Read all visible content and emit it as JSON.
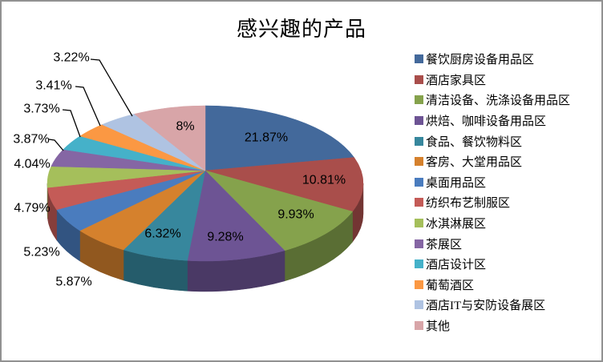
{
  "chart_data": {
    "type": "pie",
    "title": "感兴趣的产品",
    "legend_position": "right",
    "categories": [
      "餐饮厨房设备用品区",
      "酒店家具区",
      "清洁设备、洗涤设备用品区",
      "烘焙、咖啡设备用品区",
      "食品、餐饮物料区",
      "客房、大堂用品区",
      "桌面用品区",
      "纺织布艺制服区",
      "冰淇淋展区",
      "茶展区",
      "酒店设计区",
      "葡萄酒区",
      "酒店IT与安防设备展区",
      "其他"
    ],
    "values": [
      21.87,
      10.81,
      9.93,
      9.28,
      6.32,
      5.87,
      5.23,
      4.79,
      4.04,
      3.87,
      3.73,
      3.41,
      3.22,
      8
    ],
    "labels": [
      "21.87%",
      "10.81%",
      "9.93%",
      "9.28%",
      "6.32%",
      "5.87%",
      "5.23%",
      "4.79%",
      "4.04%",
      "3.87%",
      "3.73%",
      "3.41%",
      "3.22%",
      "8%"
    ],
    "colors": [
      "#43699B",
      "#A94E4B",
      "#85A24C",
      "#6D5494",
      "#37879D",
      "#D5812D",
      "#4A7CBE",
      "#C45B57",
      "#A5BF5B",
      "#8566A4",
      "#45B1C9",
      "#FB9843",
      "#AFC3E2",
      "#D8A5A8"
    ]
  }
}
